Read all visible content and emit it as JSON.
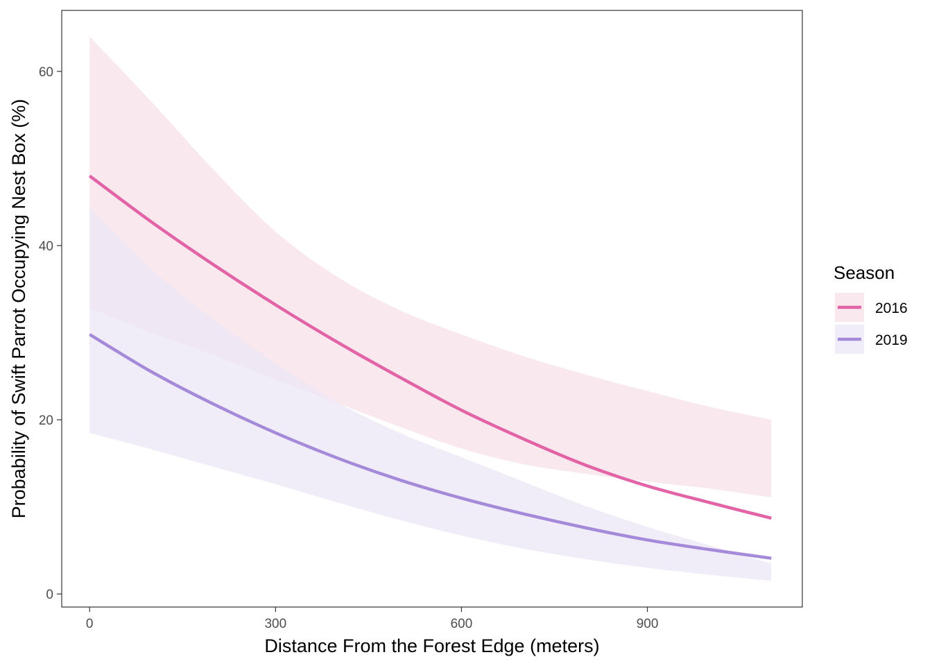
{
  "chart_data": {
    "type": "line",
    "xlabel": "Distance From the Forest Edge (meters)",
    "ylabel": "Probability of Swift Parrot Occupying Nest Box (%)",
    "xlim": [
      -45,
      1150
    ],
    "ylim": [
      -1.5,
      67
    ],
    "x_ticks": [
      0,
      300,
      600,
      900
    ],
    "y_ticks": [
      0,
      20,
      40,
      60
    ],
    "grid": false,
    "legend": {
      "title": "Season",
      "position": "right"
    },
    "series": [
      {
        "name": "2016",
        "color": "#e264a6",
        "band_color": "#f8dfe9",
        "x": [
          0,
          100,
          200,
          300,
          400,
          500,
          600,
          700,
          800,
          900,
          1000,
          1100
        ],
        "y": [
          48.0,
          42.7,
          37.8,
          33.2,
          28.9,
          24.9,
          21.1,
          17.8,
          14.8,
          12.4,
          10.5,
          8.7
        ],
        "lower": [
          32.8,
          30.0,
          27.4,
          24.6,
          21.9,
          19.2,
          16.7,
          14.9,
          13.8,
          12.9,
          12.1,
          11.1
        ],
        "upper": [
          64.0,
          56.5,
          48.7,
          41.6,
          36.4,
          32.6,
          29.8,
          27.3,
          25.2,
          23.3,
          21.5,
          20.0
        ]
      },
      {
        "name": "2019",
        "color": "#a48ad9",
        "band_color": "#ece6f5",
        "x": [
          0,
          100,
          200,
          300,
          400,
          500,
          600,
          700,
          800,
          900,
          1000,
          1100
        ],
        "y": [
          29.8,
          25.5,
          21.8,
          18.5,
          15.6,
          13.1,
          11.0,
          9.2,
          7.6,
          6.2,
          5.1,
          4.1
        ],
        "lower": [
          18.5,
          16.6,
          14.6,
          12.6,
          10.5,
          8.5,
          6.7,
          5.2,
          4.0,
          3.0,
          2.2,
          1.5
        ],
        "upper": [
          44.3,
          37.3,
          31.5,
          26.5,
          22.0,
          18.5,
          15.7,
          12.9,
          10.1,
          7.7,
          5.6,
          3.5
        ]
      }
    ]
  }
}
